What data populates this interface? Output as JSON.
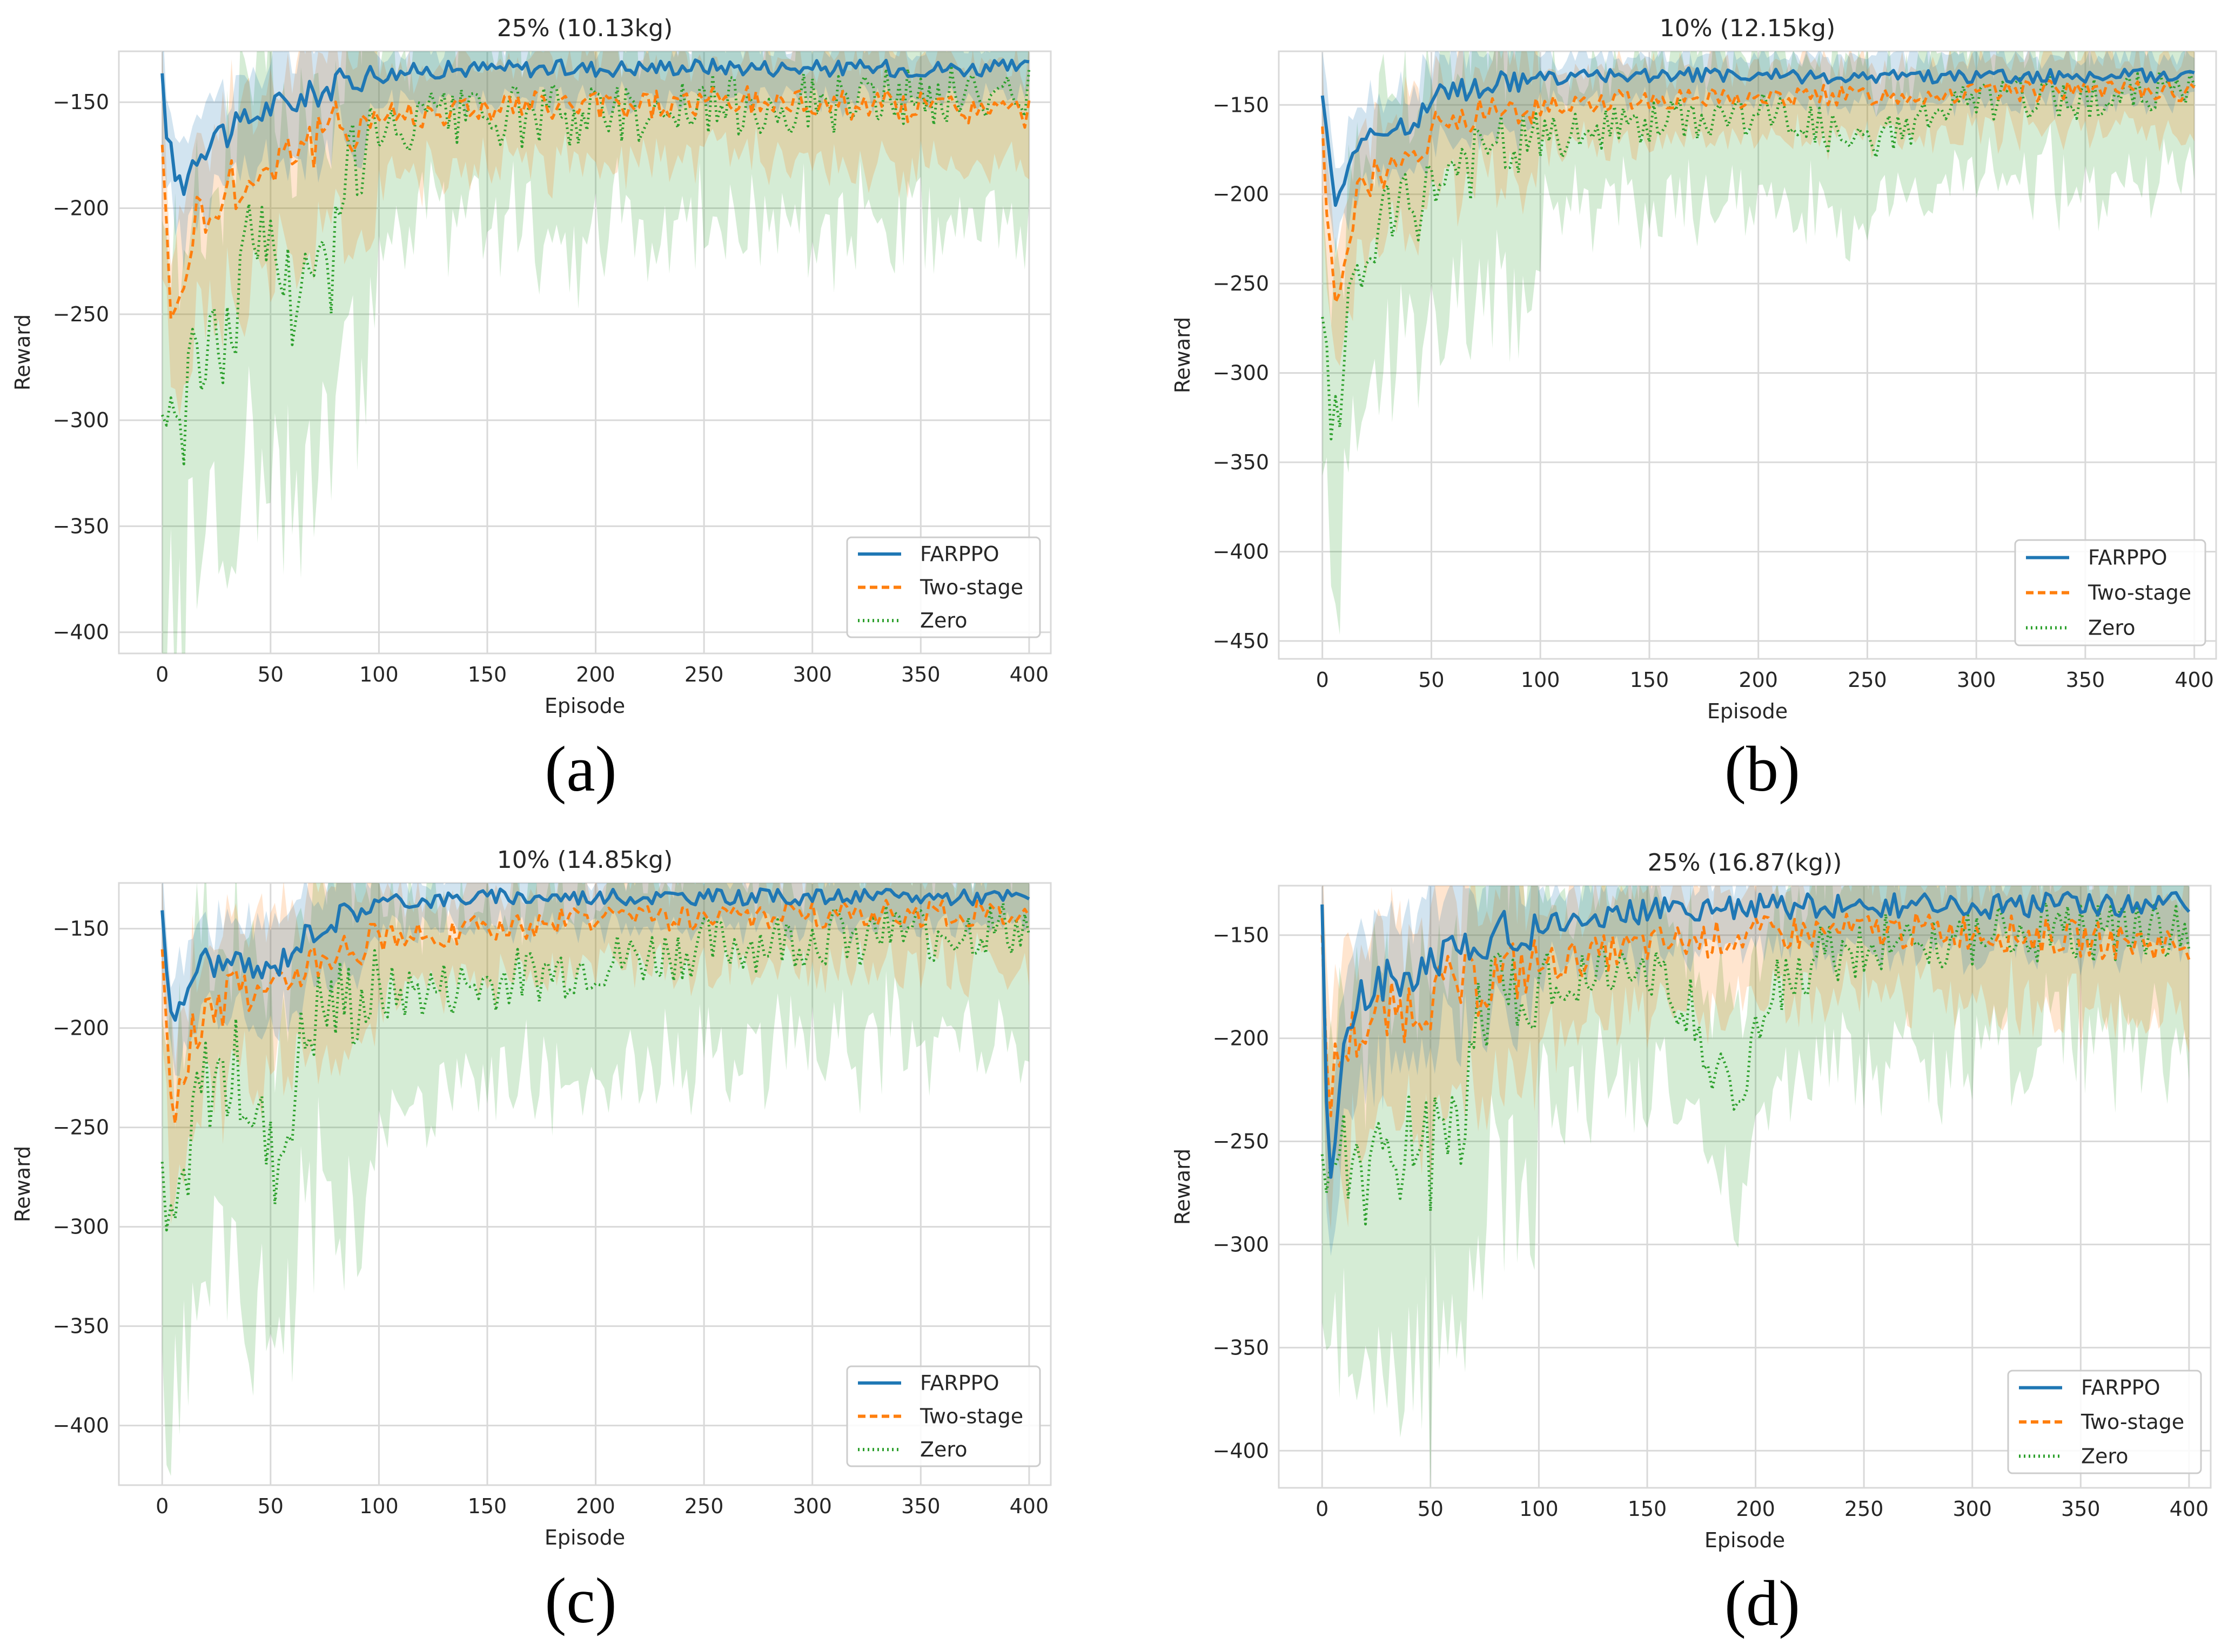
{
  "colors": {
    "FARPPO": "#1f77b4",
    "Two-stage": "#ff7f0e",
    "Zero": "#2ca02c",
    "grid": "#d9d9d9"
  },
  "captions": [
    "(a)",
    "(b)",
    "(c)",
    "(d)"
  ],
  "chart_data": [
    {
      "type": "line",
      "title": "25% (10.13kg)",
      "xlabel": "Episode",
      "ylabel": "Reward",
      "xlim": [
        -20,
        410
      ],
      "ylim": [
        -410,
        -126
      ],
      "xticks": [
        0,
        50,
        100,
        150,
        200,
        250,
        300,
        350,
        400
      ],
      "yticks": [
        -150,
        -200,
        -250,
        -300,
        -350,
        -400
      ],
      "grid": true,
      "legend": "lower-right",
      "series": [
        {
          "name": "FARPPO",
          "style": "solid",
          "x": [
            0,
            3,
            6,
            10,
            15,
            20,
            25,
            30,
            40,
            50,
            60,
            70,
            80,
            90,
            100,
            120,
            150,
            200,
            250,
            300,
            350,
            400
          ],
          "values": [
            -142,
            -170,
            -185,
            -188,
            -175,
            -170,
            -162,
            -165,
            -158,
            -152,
            -150,
            -146,
            -142,
            -138,
            -137,
            -135,
            -134,
            -134,
            -133,
            -134,
            -134,
            -134
          ],
          "band": 8
        },
        {
          "name": "Two-stage",
          "style": "dashed",
          "x": [
            0,
            3,
            6,
            10,
            15,
            20,
            25,
            30,
            40,
            50,
            60,
            70,
            80,
            90,
            100,
            120,
            150,
            200,
            250,
            300,
            350,
            400
          ],
          "values": [
            -160,
            -240,
            -255,
            -230,
            -205,
            -200,
            -210,
            -185,
            -190,
            -178,
            -170,
            -170,
            -162,
            -160,
            -156,
            -155,
            -152,
            -152,
            -150,
            -150,
            -152,
            -155
          ],
          "band": 15
        },
        {
          "name": "Zero",
          "style": "dotted",
          "x": [
            0,
            3,
            6,
            10,
            15,
            20,
            25,
            30,
            35,
            40,
            45,
            50,
            55,
            60,
            65,
            70,
            75,
            78,
            80,
            85,
            90,
            100,
            120,
            150,
            200,
            250,
            300,
            350,
            400
          ],
          "values": [
            -290,
            -300,
            -280,
            -310,
            -270,
            -260,
            -270,
            -255,
            -240,
            -215,
            -220,
            -205,
            -230,
            -240,
            -235,
            -240,
            -230,
            -250,
            -175,
            -180,
            -178,
            -170,
            -160,
            -158,
            -155,
            -152,
            -150,
            -148,
            -146
          ],
          "band": 30
        }
      ]
    },
    {
      "type": "line",
      "title": "10% (12.15kg)",
      "xlabel": "Episode",
      "ylabel": "Reward",
      "xlim": [
        -20,
        410
      ],
      "ylim": [
        -460,
        -120
      ],
      "xticks": [
        0,
        50,
        100,
        150,
        200,
        250,
        300,
        350,
        400
      ],
      "yticks": [
        -150,
        -200,
        -250,
        -300,
        -350,
        -400,
        -450
      ],
      "grid": true,
      "legend": "lower-right",
      "series": [
        {
          "name": "FARPPO",
          "style": "solid",
          "x": [
            0,
            3,
            6,
            10,
            15,
            20,
            25,
            30,
            40,
            50,
            60,
            80,
            100,
            150,
            200,
            250,
            300,
            350,
            400
          ],
          "values": [
            -140,
            -180,
            -200,
            -190,
            -172,
            -168,
            -170,
            -165,
            -160,
            -148,
            -142,
            -138,
            -135,
            -133,
            -134,
            -134,
            -134,
            -134,
            -133
          ],
          "band": 8
        },
        {
          "name": "Two-stage",
          "style": "dashed",
          "x": [
            0,
            3,
            6,
            10,
            15,
            20,
            25,
            30,
            40,
            50,
            60,
            80,
            100,
            150,
            200,
            250,
            300,
            350,
            400
          ],
          "values": [
            -160,
            -230,
            -260,
            -235,
            -205,
            -195,
            -190,
            -190,
            -175,
            -165,
            -160,
            -155,
            -150,
            -146,
            -146,
            -144,
            -143,
            -142,
            -142
          ],
          "band": 12
        },
        {
          "name": "Zero",
          "style": "dotted",
          "x": [
            0,
            3,
            6,
            10,
            15,
            20,
            25,
            30,
            40,
            50,
            60,
            80,
            100,
            150,
            200,
            220,
            240,
            250,
            260,
            280,
            300,
            350,
            400
          ],
          "values": [
            -275,
            -320,
            -330,
            -290,
            -250,
            -240,
            -220,
            -215,
            -210,
            -195,
            -185,
            -178,
            -170,
            -160,
            -155,
            -158,
            -170,
            -175,
            -165,
            -155,
            -148,
            -145,
            -143
          ],
          "band": 25
        }
      ]
    },
    {
      "type": "line",
      "title": "10% (14.85kg)",
      "xlabel": "Episode",
      "ylabel": "Reward",
      "xlim": [
        -20,
        410
      ],
      "ylim": [
        -430,
        -127
      ],
      "xticks": [
        0,
        50,
        100,
        150,
        200,
        250,
        300,
        350,
        400
      ],
      "yticks": [
        -150,
        -200,
        -250,
        -300,
        -350,
        -400
      ],
      "grid": true,
      "legend": "lower-right",
      "series": [
        {
          "name": "FARPPO",
          "style": "solid",
          "x": [
            0,
            3,
            6,
            10,
            15,
            20,
            25,
            30,
            40,
            50,
            60,
            70,
            80,
            90,
            100,
            150,
            200,
            250,
            300,
            350,
            400
          ],
          "values": [
            -140,
            -180,
            -200,
            -185,
            -170,
            -165,
            -168,
            -168,
            -170,
            -172,
            -160,
            -150,
            -145,
            -140,
            -137,
            -134,
            -134,
            -134,
            -134,
            -134,
            -134
          ],
          "band": 8
        },
        {
          "name": "Two-stage",
          "style": "dashed",
          "x": [
            0,
            3,
            6,
            10,
            15,
            20,
            25,
            30,
            40,
            50,
            60,
            70,
            80,
            100,
            150,
            200,
            250,
            300,
            350,
            400
          ],
          "values": [
            -165,
            -230,
            -240,
            -225,
            -200,
            -195,
            -190,
            -185,
            -180,
            -185,
            -170,
            -162,
            -158,
            -155,
            -150,
            -145,
            -145,
            -143,
            -142,
            -142
          ],
          "band": 14
        },
        {
          "name": "Zero",
          "style": "dotted",
          "x": [
            0,
            3,
            6,
            10,
            15,
            20,
            25,
            30,
            35,
            40,
            45,
            50,
            55,
            60,
            65,
            70,
            80,
            100,
            150,
            200,
            250,
            300,
            350,
            400
          ],
          "values": [
            -290,
            -310,
            -300,
            -270,
            -240,
            -230,
            -225,
            -230,
            -220,
            -235,
            -250,
            -270,
            -265,
            -235,
            -210,
            -195,
            -190,
            -185,
            -178,
            -168,
            -160,
            -155,
            -152,
            -150
          ],
          "band": 30
        }
      ]
    },
    {
      "type": "line",
      "title": "25% (16.87(kg))",
      "xlabel": "Episode",
      "ylabel": "Reward",
      "xlim": [
        -20,
        410
      ],
      "ylim": [
        -418,
        -126
      ],
      "xticks": [
        0,
        50,
        100,
        150,
        200,
        250,
        300,
        350,
        400
      ],
      "yticks": [
        -150,
        -200,
        -250,
        -300,
        -350,
        -400
      ],
      "grid": true,
      "legend": "lower-right",
      "series": [
        {
          "name": "FARPPO",
          "style": "solid",
          "x": [
            0,
            3,
            6,
            10,
            15,
            20,
            25,
            30,
            40,
            50,
            60,
            70,
            80,
            100,
            150,
            200,
            250,
            300,
            350,
            400
          ],
          "values": [
            -140,
            -285,
            -250,
            -200,
            -185,
            -180,
            -175,
            -172,
            -170,
            -165,
            -158,
            -152,
            -150,
            -145,
            -138,
            -136,
            -136,
            -136,
            -135,
            -134
          ],
          "band": 12
        },
        {
          "name": "Two-stage",
          "style": "dashed",
          "x": [
            0,
            3,
            6,
            10,
            15,
            20,
            25,
            30,
            40,
            50,
            60,
            70,
            80,
            100,
            150,
            200,
            250,
            300,
            350,
            400
          ],
          "values": [
            -165,
            -230,
            -215,
            -205,
            -198,
            -195,
            -190,
            -190,
            -185,
            -180,
            -175,
            -175,
            -170,
            -165,
            -155,
            -150,
            -148,
            -148,
            -152,
            -155
          ],
          "band": 18
        },
        {
          "name": "Zero",
          "style": "dotted",
          "x": [
            0,
            3,
            6,
            10,
            15,
            20,
            25,
            30,
            35,
            40,
            45,
            50,
            55,
            60,
            65,
            70,
            80,
            100,
            150,
            170,
            180,
            190,
            200,
            210,
            230,
            250,
            300,
            350,
            400
          ],
          "values": [
            -240,
            -260,
            -250,
            -240,
            -270,
            -280,
            -260,
            -250,
            -265,
            -255,
            -240,
            -265,
            -240,
            -235,
            -245,
            -200,
            -180,
            -170,
            -165,
            -185,
            -210,
            -230,
            -200,
            -175,
            -160,
            -155,
            -150,
            -148,
            -146
          ],
          "band": 30
        }
      ]
    }
  ]
}
